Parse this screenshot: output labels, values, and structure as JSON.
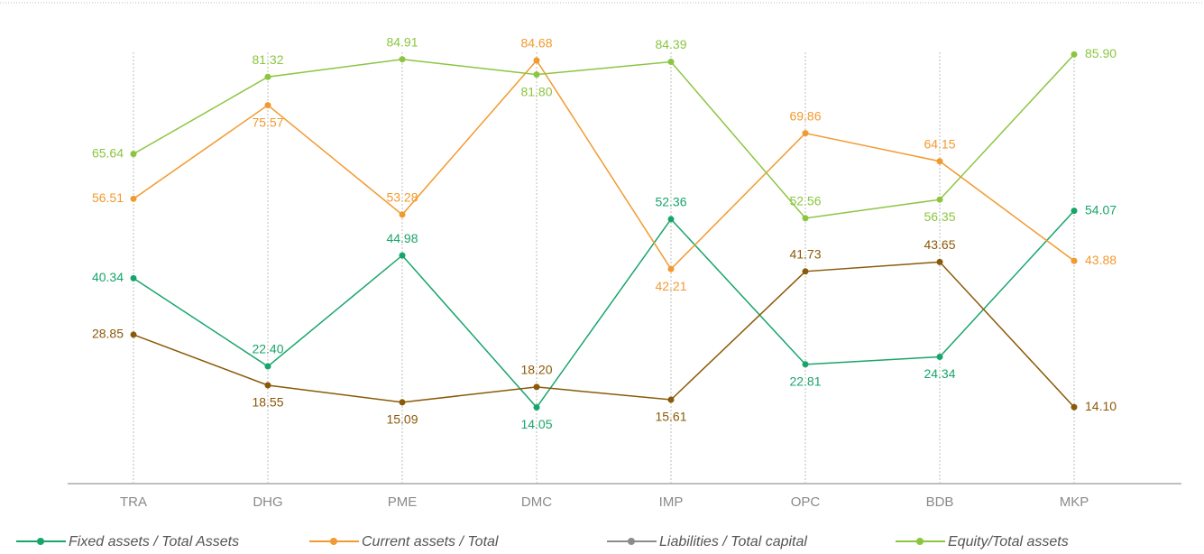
{
  "chart_data": {
    "type": "line",
    "categories": [
      "TRA",
      "DHG",
      "PME",
      "DMC",
      "IMP",
      "OPC",
      "BDB",
      "MKP"
    ],
    "ylim": [
      0,
      90
    ],
    "grid": true,
    "legend": "bottom",
    "series": [
      {
        "name": "Fixed assets / Total Assets",
        "color": "#18a56b",
        "values": [
          40.34,
          22.4,
          44.98,
          14.05,
          52.36,
          22.81,
          24.34,
          54.07
        ],
        "value_labels": [
          "40.34",
          "22.40",
          "44.98",
          "14.05",
          "52.36",
          "22.81",
          "24.34",
          "54.07"
        ]
      },
      {
        "name": "Current assets / Total",
        "color": "#f29a30",
        "values": [
          56.51,
          75.57,
          53.28,
          84.68,
          42.21,
          69.86,
          64.15,
          43.88
        ]
      },
      {
        "name": "Liabilities / Total capital",
        "color": "#8a5a08",
        "legend_color": "#8c8c8c",
        "values": [
          28.85,
          18.55,
          15.09,
          18.2,
          15.61,
          41.73,
          43.65,
          14.1
        ],
        "value_labels": [
          "28.85",
          "18.55",
          "15.09",
          "18.20",
          "15.61",
          "41.73",
          "43.65",
          "14.10"
        ]
      },
      {
        "name": "Equity/Total assets",
        "color": "#8cc540",
        "values": [
          65.64,
          81.32,
          84.91,
          81.8,
          84.39,
          52.56,
          56.35,
          85.9
        ],
        "value_labels": [
          "65.64",
          "81.32",
          "84.91",
          "81.80",
          "84.39",
          "52.56",
          "56.35",
          "85.90"
        ]
      }
    ]
  }
}
